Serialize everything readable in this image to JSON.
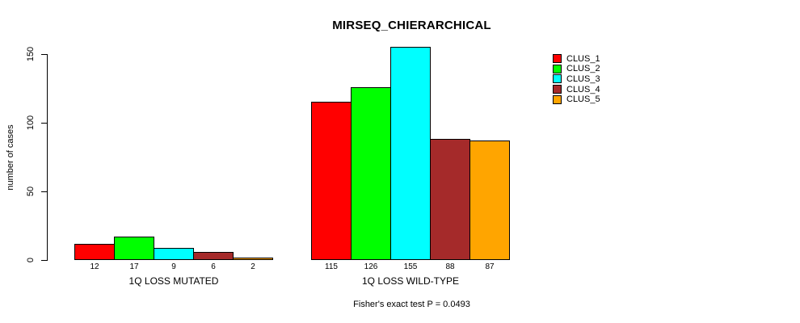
{
  "title": "MIRSEQ_CHIERARCHICAL",
  "footnote": "Fisher's exact test P = 0.0493",
  "colors": {
    "background": "#FFFFFF",
    "bar_border": "#000000",
    "text": "#000000"
  },
  "chart_data": {
    "type": "bar",
    "title": "MIRSEQ_CHIERARCHICAL",
    "xlabel": "",
    "ylabel": "number of cases",
    "ylim": [
      0,
      150
    ],
    "yticks": [
      0,
      50,
      100,
      150
    ],
    "grid": false,
    "legend_position": "right",
    "bar_value_labels_shown": true,
    "series": [
      {
        "name": "CLUS_1",
        "color": "#FF0000"
      },
      {
        "name": "CLUS_2",
        "color": "#00FF00"
      },
      {
        "name": "CLUS_3",
        "color": "#00FFFF"
      },
      {
        "name": "CLUS_4",
        "color": "#A52A2A"
      },
      {
        "name": "CLUS_5",
        "color": "#FFA500"
      }
    ],
    "categories": [
      "1Q LOSS MUTATED",
      "1Q LOSS WILD-TYPE"
    ],
    "groups": [
      {
        "label": "1Q LOSS MUTATED",
        "values": [
          12,
          17,
          9,
          6,
          2
        ]
      },
      {
        "label": "1Q LOSS WILD-TYPE",
        "values": [
          115,
          126,
          155,
          88,
          87
        ]
      }
    ],
    "annotation": "Fisher's exact test P = 0.0493"
  }
}
